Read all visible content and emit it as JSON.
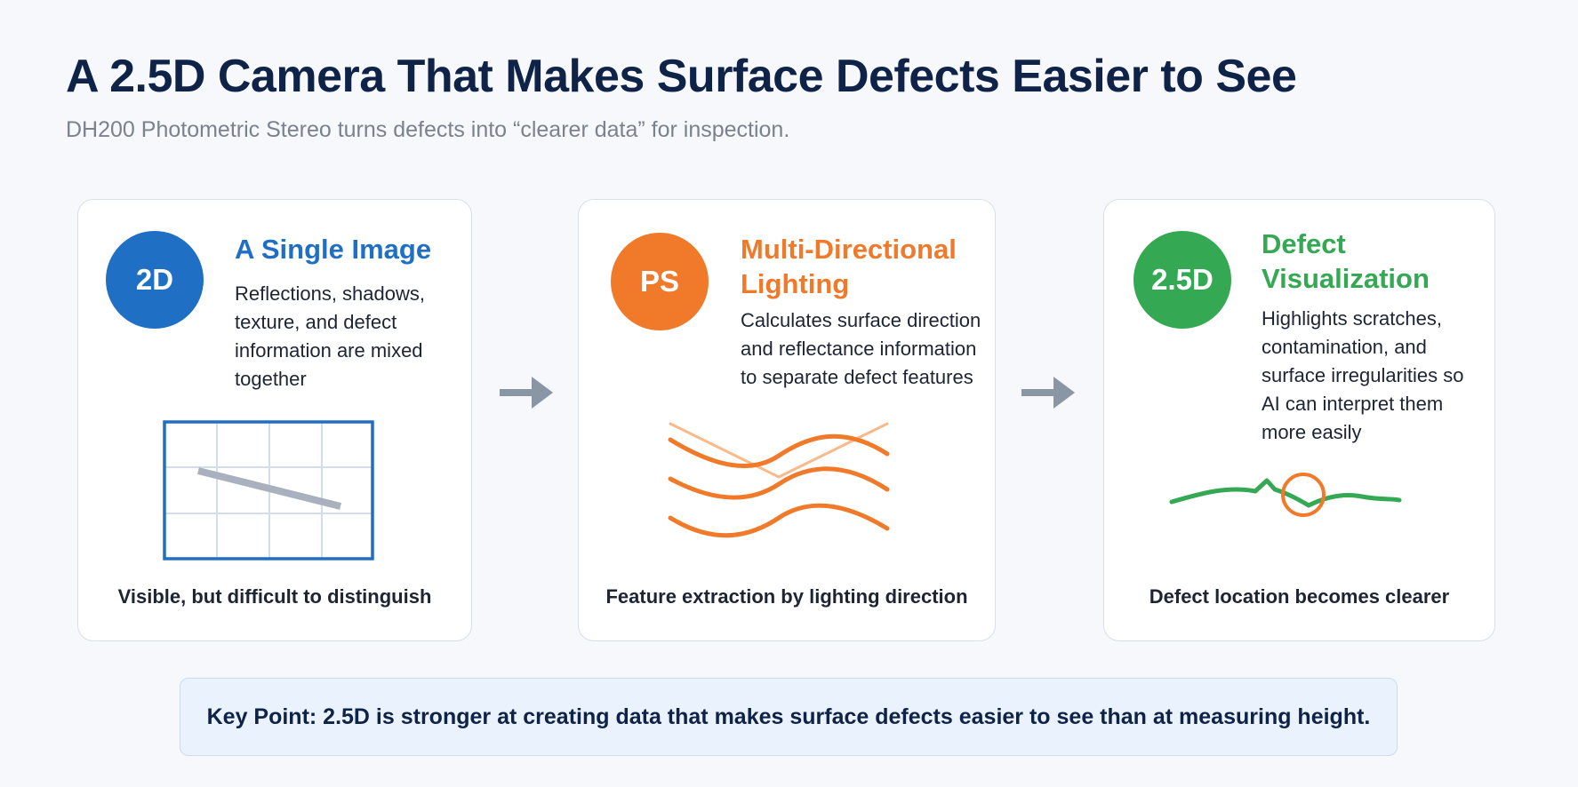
{
  "header": {
    "title": "A 2.5D Camera That Makes Surface Defects Easier to See",
    "subtitle": "DH200 Photometric Stereo turns defects into “clearer data” for inspection."
  },
  "cards": [
    {
      "badge": "2D",
      "title": "A Single Image",
      "desc": [
        "Reflections, shadows,",
        "texture, and defect",
        "information are mixed",
        "together"
      ],
      "caption": "Visible, but difficult to distinguish",
      "color": "#1f6fc5",
      "figure_icon": "grid-with-scratch-icon"
    },
    {
      "badge": "PS",
      "title": [
        "Multi-Directional",
        "Lighting"
      ],
      "desc": [
        "Calculates surface direction",
        "and reflectance information",
        "to separate defect features"
      ],
      "caption": "Feature extraction by lighting direction",
      "color": "#f07a2a",
      "figure_icon": "lighting-waves-icon"
    },
    {
      "badge": "2.5D",
      "title": [
        "Defect",
        "Visualization"
      ],
      "desc": [
        "Highlights scratches,",
        "contamination, and",
        "surface irregularities so",
        "AI can interpret them",
        "more easily"
      ],
      "caption": "Defect location becomes clearer",
      "color": "#34a853",
      "figure_icon": "defect-profile-icon"
    }
  ],
  "arrows": [
    "arrow-right-icon",
    "arrow-right-icon"
  ],
  "arrow_color": "#8a95a5",
  "key_point": "Key Point: 2.5D is stronger at creating data that makes surface defects easier to see than at measuring height."
}
